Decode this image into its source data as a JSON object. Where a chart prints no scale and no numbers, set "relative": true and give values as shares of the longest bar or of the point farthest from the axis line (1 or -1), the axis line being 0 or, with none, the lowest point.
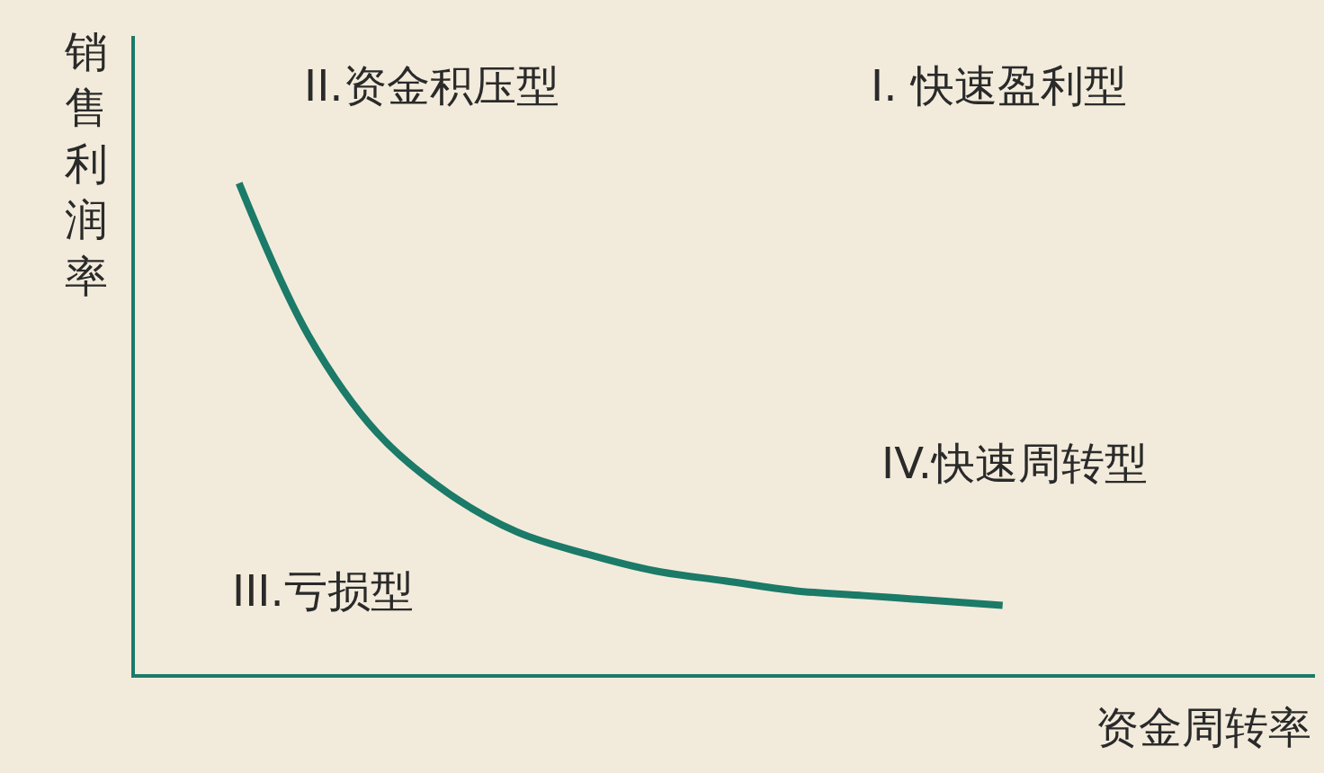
{
  "chart_data": {
    "type": "line",
    "relative": true,
    "xlabel": "资金周转率",
    "ylabel": "销售利润率",
    "categories": [
      null,
      null,
      null,
      null,
      null,
      null,
      null,
      null,
      null,
      null,
      null,
      null
    ],
    "series": [
      {
        "color": "#1b7a68",
        "values": [
          1.0,
          0.69,
          0.49,
          0.37,
          0.29,
          0.245,
          0.21,
          0.19,
          0.17,
          0.16,
          0.15,
          0.14
        ]
      }
    ],
    "annotations": [
      "II.资金积压型",
      "I. 快速盈利型",
      "III.亏损型",
      "IV.快速周转型"
    ],
    "marker": "none",
    "line_style": "solid",
    "grid": false
  }
}
